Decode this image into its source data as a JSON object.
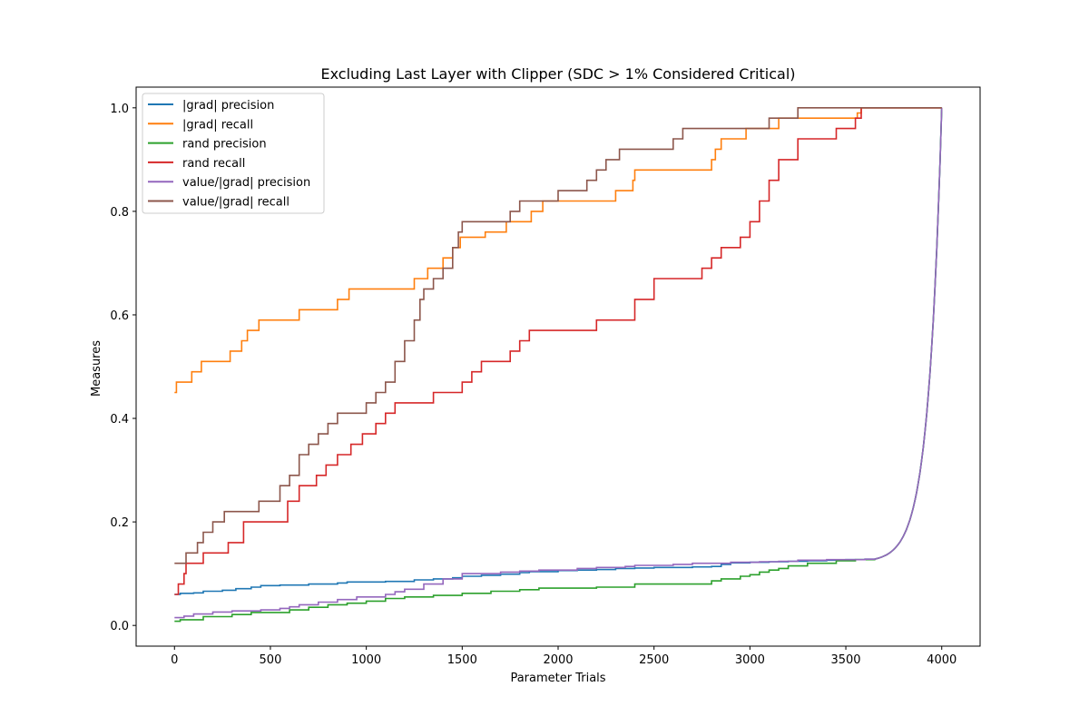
{
  "chart_data": {
    "type": "line",
    "title": "Excluding Last Layer with Clipper (SDC > 1% Considered Critical)",
    "xlabel": "Parameter Trials",
    "ylabel": "Measures",
    "xlim": [
      -200,
      4200
    ],
    "ylim": [
      -0.04,
      1.04
    ],
    "x_ticks": [
      0,
      500,
      1000,
      1500,
      2000,
      2500,
      3000,
      3500,
      4000
    ],
    "y_ticks": [
      0.0,
      0.2,
      0.4,
      0.6,
      0.8,
      1.0
    ],
    "y_tick_labels": [
      "0.0",
      "0.2",
      "0.4",
      "0.6",
      "0.8",
      "1.0"
    ],
    "grid": false,
    "legend_position": "top-left",
    "series": [
      {
        "name": "|grad| precision",
        "color": "#1f77b4",
        "x": [
          0,
          30,
          100,
          150,
          250,
          320,
          400,
          450,
          550,
          700,
          850,
          900,
          1100,
          1250,
          1350,
          1450,
          1500,
          1600,
          1700,
          1800,
          1850,
          2000,
          2100,
          2200,
          2300,
          2400,
          2500,
          2700,
          2800,
          2850,
          2900,
          3000,
          3100,
          3200,
          3300,
          3400,
          3500,
          3600,
          3650
        ],
        "y": [
          0.06,
          0.062,
          0.063,
          0.066,
          0.068,
          0.071,
          0.074,
          0.077,
          0.078,
          0.08,
          0.082,
          0.084,
          0.085,
          0.088,
          0.09,
          0.092,
          0.095,
          0.097,
          0.099,
          0.102,
          0.104,
          0.106,
          0.107,
          0.108,
          0.11,
          0.111,
          0.112,
          0.113,
          0.114,
          0.118,
          0.121,
          0.122,
          0.123,
          0.124,
          0.125,
          0.126,
          0.127,
          0.128,
          0.128
        ]
      },
      {
        "name": "|grad| recall",
        "color": "#ff7f0e",
        "x": [
          0,
          10,
          90,
          140,
          290,
          350,
          380,
          440,
          650,
          850,
          910,
          1250,
          1320,
          1400,
          1450,
          1490,
          1620,
          1730,
          1860,
          1920,
          2300,
          2390,
          2400,
          2800,
          2820,
          2850,
          2980,
          3150,
          3560,
          3580,
          3620
        ],
        "y": [
          0.45,
          0.47,
          0.49,
          0.51,
          0.53,
          0.55,
          0.57,
          0.59,
          0.61,
          0.63,
          0.65,
          0.67,
          0.69,
          0.71,
          0.73,
          0.75,
          0.76,
          0.78,
          0.8,
          0.82,
          0.84,
          0.86,
          0.88,
          0.9,
          0.92,
          0.94,
          0.96,
          0.98,
          0.99,
          1.0,
          1.0
        ]
      },
      {
        "name": "rand precision",
        "color": "#2ca02c",
        "x": [
          0,
          30,
          150,
          300,
          400,
          600,
          700,
          800,
          900,
          1000,
          1100,
          1200,
          1350,
          1500,
          1650,
          1800,
          1900,
          2200,
          2400,
          2800,
          2850,
          2950,
          3000,
          3050,
          3100,
          3150,
          3200,
          3300,
          3450,
          3550,
          3650
        ],
        "y": [
          0.008,
          0.011,
          0.017,
          0.021,
          0.025,
          0.03,
          0.035,
          0.04,
          0.043,
          0.047,
          0.052,
          0.055,
          0.058,
          0.062,
          0.066,
          0.069,
          0.072,
          0.074,
          0.08,
          0.086,
          0.09,
          0.095,
          0.098,
          0.103,
          0.107,
          0.11,
          0.115,
          0.12,
          0.125,
          0.127,
          0.128
        ]
      },
      {
        "name": "rand recall",
        "color": "#d62728",
        "x": [
          0,
          20,
          50,
          60,
          150,
          280,
          360,
          590,
          650,
          740,
          790,
          850,
          920,
          980,
          1000,
          1050,
          1100,
          1150,
          1200,
          1250,
          1350,
          1500,
          1550,
          1600,
          1650,
          1750,
          1800,
          1850,
          1950,
          2200,
          2400,
          2500,
          2600,
          2750,
          2800,
          2850,
          2950,
          3000,
          3050,
          3100,
          3150,
          3170,
          3250,
          3450,
          3550,
          3580,
          3620
        ],
        "y": [
          0.06,
          0.08,
          0.1,
          0.12,
          0.14,
          0.16,
          0.2,
          0.24,
          0.27,
          0.29,
          0.31,
          0.33,
          0.35,
          0.37,
          0.37,
          0.39,
          0.41,
          0.43,
          0.43,
          0.43,
          0.45,
          0.47,
          0.49,
          0.51,
          0.51,
          0.53,
          0.55,
          0.57,
          0.57,
          0.59,
          0.63,
          0.67,
          0.67,
          0.69,
          0.71,
          0.73,
          0.75,
          0.78,
          0.82,
          0.86,
          0.9,
          0.9,
          0.94,
          0.96,
          0.98,
          1.0,
          1.0
        ]
      },
      {
        "name": "value/|grad| precision",
        "color": "#9467bd",
        "x": [
          0,
          50,
          100,
          200,
          300,
          450,
          550,
          600,
          650,
          750,
          850,
          950,
          1100,
          1150,
          1200,
          1300,
          1400,
          1500,
          1700,
          1800,
          1900,
          2100,
          2200,
          2350,
          2400,
          2600,
          2700,
          2900,
          3050,
          3150,
          3250,
          3400,
          3600,
          3650
        ],
        "y": [
          0.015,
          0.018,
          0.022,
          0.026,
          0.028,
          0.03,
          0.033,
          0.036,
          0.04,
          0.045,
          0.05,
          0.055,
          0.06,
          0.065,
          0.07,
          0.08,
          0.09,
          0.1,
          0.103,
          0.105,
          0.107,
          0.11,
          0.112,
          0.114,
          0.116,
          0.118,
          0.12,
          0.122,
          0.123,
          0.124,
          0.126,
          0.127,
          0.128,
          0.128
        ]
      },
      {
        "name": "value/|grad| recall",
        "color": "#8c564b",
        "x": [
          0,
          60,
          120,
          150,
          200,
          260,
          440,
          550,
          600,
          650,
          700,
          750,
          800,
          850,
          900,
          1000,
          1050,
          1100,
          1150,
          1200,
          1250,
          1280,
          1300,
          1350,
          1400,
          1450,
          1480,
          1500,
          1750,
          1800,
          1850,
          2000,
          2150,
          2200,
          2250,
          2320,
          2400,
          2600,
          2650,
          2950,
          3100,
          3250,
          3600
        ],
        "y": [
          0.12,
          0.14,
          0.16,
          0.18,
          0.2,
          0.22,
          0.24,
          0.27,
          0.29,
          0.33,
          0.35,
          0.37,
          0.39,
          0.41,
          0.41,
          0.43,
          0.45,
          0.47,
          0.51,
          0.55,
          0.59,
          0.63,
          0.65,
          0.67,
          0.69,
          0.73,
          0.76,
          0.78,
          0.8,
          0.82,
          0.82,
          0.84,
          0.86,
          0.88,
          0.9,
          0.92,
          0.92,
          0.94,
          0.96,
          0.96,
          0.98,
          1.0,
          1.0
        ]
      }
    ],
    "convergence": {
      "from_x": 3650,
      "to_x": 4000,
      "to_y": 1.0
    }
  }
}
